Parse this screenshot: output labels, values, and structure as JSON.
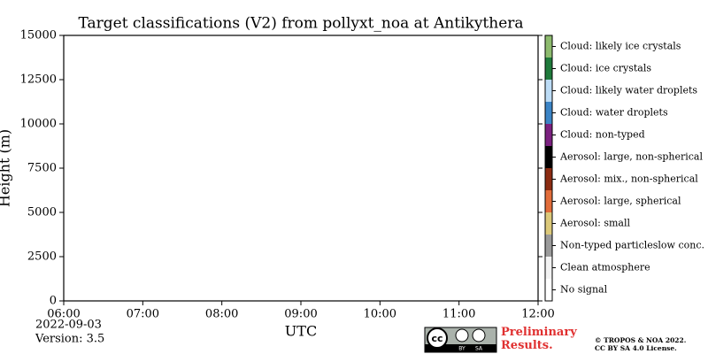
{
  "chart_data": {
    "type": "heatmap",
    "title": "Target classifications (V2) from pollyxt_noa at Antikythera",
    "x_label": "UTC",
    "y_label": "Height (m)",
    "xlim": [
      6,
      12
    ],
    "xticks": [
      {
        "value": 6,
        "label": "06:00"
      },
      {
        "value": 7,
        "label": "07:00"
      },
      {
        "value": 8,
        "label": "08:00"
      },
      {
        "value": 9,
        "label": "09:00"
      },
      {
        "value": 10,
        "label": "10:00"
      },
      {
        "value": 11,
        "label": "11:00"
      },
      {
        "value": 12,
        "label": "12:00"
      }
    ],
    "ylim": [
      0,
      15000
    ],
    "yticks": [
      0,
      2500,
      5000,
      7500,
      10000,
      12500,
      15000
    ],
    "classes": [
      {
        "name": "Cloud: likely ice crystals",
        "color": "#8dbb6e"
      },
      {
        "name": "Cloud: ice crystals",
        "color": "#1f7a3b"
      },
      {
        "name": "Cloud: likely water droplets",
        "color": "#bcdcf6"
      },
      {
        "name": "Cloud: water droplets",
        "color": "#3b84c6"
      },
      {
        "name": "Cloud: non-typed",
        "color": "#7b2180"
      },
      {
        "name": "Aerosol: large, non-spherical",
        "color": "#000000"
      },
      {
        "name": "Aerosol: mix., non-spherical",
        "color": "#8c2c12"
      },
      {
        "name": "Aerosol: large, spherical",
        "color": "#e26d3a"
      },
      {
        "name": "Aerosol: small",
        "color": "#dcc97a"
      },
      {
        "name": "Non-typed particleslow conc.",
        "color": "#9a9a9a"
      },
      {
        "name": "Clean atmosphere",
        "color": "#f2f2f2"
      },
      {
        "name": "No signal",
        "color": "#ffffff"
      }
    ]
  },
  "footer": {
    "date": "2022-09-03",
    "version": "Version: 3.5",
    "status": "Preliminary Results.",
    "license": [
      "© TROPOS & NOA 2022.",
      "CC BY SA 4.0 License."
    ],
    "cc_logo": [
      "cc",
      "BY",
      "SA"
    ]
  }
}
